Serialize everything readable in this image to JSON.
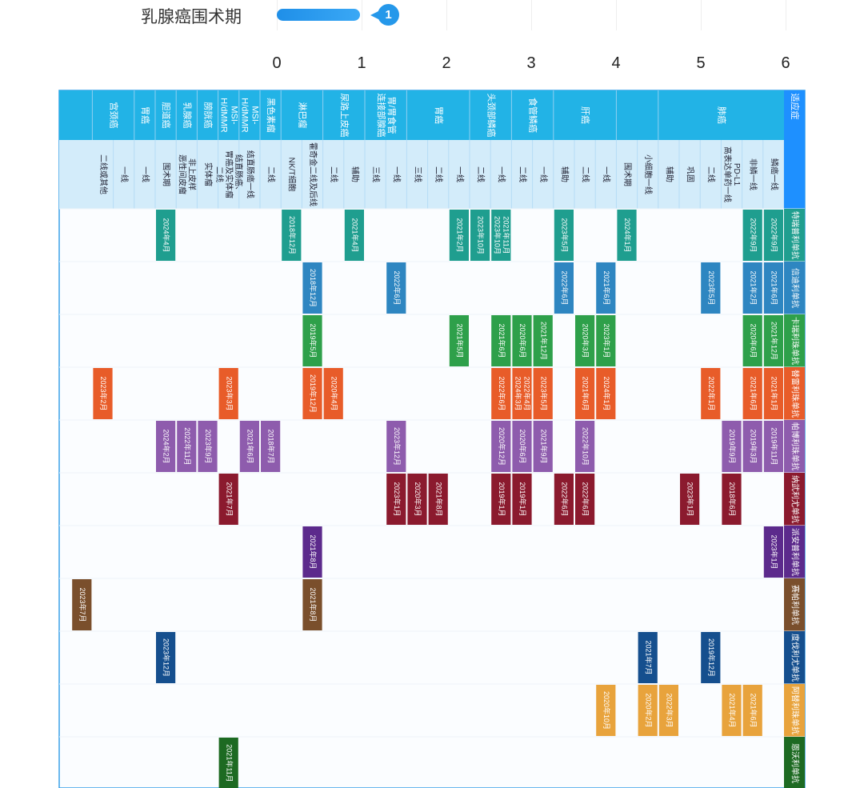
{
  "header": {
    "query": "乳腺癌围术期",
    "rank": "1"
  },
  "colors": {
    "header_top": "#22b3e6",
    "header_sub": "#d3ecfa",
    "accent": "#1e90ff",
    "trastuzumab": "#1f9e8f",
    "durvalumab": "#2e86c1",
    "atezolizumab": "#2ea04a",
    "nivolumab": "#e85c29",
    "pembrolizumab": "#8e5cad",
    "tislelizumab": "#8b1a2e",
    "sintilimab": "#5c2a8c",
    "serplulimab": "#7a4f2c",
    "camrelizumab": "#154f8e",
    "toripalimab": "#e8a33c",
    "envafolimab": "#1d6a22"
  },
  "chart_data": {
    "type": "table",
    "title": "",
    "x_axis_ticks": [
      "0",
      "1",
      "2",
      "3",
      "4",
      "5",
      "6"
    ],
    "cancers": [
      {
        "name": "适应症",
        "subs": []
      },
      {
        "name": "肺癌",
        "subs": [
          "鳞癌一线",
          "非鳞一线",
          "PD-L1\n高表达单药一线",
          "二线",
          "巩固",
          "辅助"
        ]
      },
      {
        "name": "",
        "subs": [
          "小细胞一线",
          "围术期"
        ]
      },
      {
        "name": "肝癌",
        "subs": [
          "一线",
          "二线",
          "辅助"
        ]
      },
      {
        "name": "食管鳞癌",
        "subs": [
          "一线",
          "二线"
        ]
      },
      {
        "name": "头颈部鳞癌",
        "subs": [
          "一线",
          "二线"
        ]
      },
      {
        "name": "胃癌",
        "subs": [
          "一线",
          "二线",
          "三线"
        ]
      },
      {
        "name": "胃/胃食管\n连接部腺癌",
        "subs": [
          "一线",
          "三线"
        ]
      },
      {
        "name": "尿路上皮癌",
        "subs": [
          "辅助",
          "二线"
        ]
      },
      {
        "name": "淋巴瘤",
        "subs": [
          "霍奇金二线及后线",
          "NK/T细胞"
        ]
      },
      {
        "name": "黑色素瘤",
        "subs": [
          "二线"
        ]
      },
      {
        "name": "MSI-\nH/dMMR",
        "subs": [
          "结直肠癌一线"
        ]
      },
      {
        "name": "MSI-\nH/dMMR",
        "subs": [
          "结直肠癌、\n胃癌及实体瘤\n二线"
        ]
      },
      {
        "name": "膀胱癌",
        "subs": [
          "实体瘤"
        ]
      },
      {
        "name": "乳腺癌",
        "subs": [
          "非上皮样\n恶性间皮瘤"
        ]
      },
      {
        "name": "胆道癌",
        "subs": [
          "围术期"
        ]
      },
      {
        "name": "胃癌",
        "subs": [
          "一线"
        ]
      },
      {
        "name": "宫颈癌",
        "subs": [
          "一线",
          "二线或其他"
        ]
      }
    ],
    "drugs": [
      {
        "name": "特瑞普利单抗",
        "color_key": "trastuzumab",
        "cells": [
          {
            "col": 1,
            "label": "2022年9月"
          },
          {
            "col": 2,
            "label": "2022年9月"
          },
          {
            "col": 8,
            "label": "2024年1月"
          },
          {
            "col": 11,
            "label": "2023年5月"
          },
          {
            "col": 14,
            "label": "2021年11月\n2023年10月"
          },
          {
            "col": 15,
            "label": "2023年10月"
          },
          {
            "col": 16,
            "label": "2021年2月"
          },
          {
            "col": 21,
            "label": "2021年4月"
          },
          {
            "col": 24,
            "label": "2018年12月"
          },
          {
            "col": 30,
            "label": "2024年4月"
          }
        ]
      },
      {
        "name": "信迪利单抗",
        "color_key": "durvalumab",
        "cells": [
          {
            "col": 1,
            "label": "2021年6月"
          },
          {
            "col": 2,
            "label": "2021年2月"
          },
          {
            "col": 4,
            "label": "2023年5月"
          },
          {
            "col": 9,
            "label": "2021年6月"
          },
          {
            "col": 11,
            "label": "2022年6月"
          },
          {
            "col": 19,
            "label": "2022年6月"
          },
          {
            "col": 23,
            "label": "2018年12月"
          }
        ]
      },
      {
        "name": "卡瑞利珠单抗",
        "color_key": "atezolizumab",
        "cells": [
          {
            "col": 1,
            "label": "2021年12月"
          },
          {
            "col": 2,
            "label": "2020年6月"
          },
          {
            "col": 9,
            "label": "2023年1月"
          },
          {
            "col": 10,
            "label": "2020年3月"
          },
          {
            "col": 12,
            "label": "2021年12月"
          },
          {
            "col": 13,
            "label": "2020年6月"
          },
          {
            "col": 14,
            "label": "2021年6月"
          },
          {
            "col": 16,
            "label": "2021年5月"
          },
          {
            "col": 23,
            "label": "2019年5月"
          }
        ]
      },
      {
        "name": "替雷利珠单抗",
        "color_key": "nivolumab",
        "cells": [
          {
            "col": 1,
            "label": "2021年1月"
          },
          {
            "col": 2,
            "label": "2021年6月"
          },
          {
            "col": 4,
            "label": "2022年1月"
          },
          {
            "col": 9,
            "label": "2024年1月"
          },
          {
            "col": 10,
            "label": "2021年6月"
          },
          {
            "col": 12,
            "label": "2023年5月"
          },
          {
            "col": 13,
            "label": "2022年4月\n2024年3月"
          },
          {
            "col": 14,
            "label": "2022年6月"
          },
          {
            "col": 22,
            "label": "2020年4月"
          },
          {
            "col": 23,
            "label": "2019年12月"
          },
          {
            "col": 27,
            "label": "2023年3月"
          },
          {
            "col": 33,
            "label": "2023年2月"
          }
        ]
      },
      {
        "name": "帕博利珠单抗",
        "color_key": "pembrolizumab",
        "cells": [
          {
            "col": 1,
            "label": "2019年11月"
          },
          {
            "col": 2,
            "label": "2019年3月"
          },
          {
            "col": 3,
            "label": "2019年9月"
          },
          {
            "col": 10,
            "label": "2022年10月"
          },
          {
            "col": 12,
            "label": "2021年9月"
          },
          {
            "col": 13,
            "label": "2020年6月"
          },
          {
            "col": 14,
            "label": "2020年12月"
          },
          {
            "col": 19,
            "label": "2023年12月"
          },
          {
            "col": 25,
            "label": "2018年7月"
          },
          {
            "col": 26,
            "label": "2021年6月"
          },
          {
            "col": 28,
            "label": "2023年9月"
          },
          {
            "col": 29,
            "label": "2022年11月"
          },
          {
            "col": 30,
            "label": "2024年2月"
          }
        ]
      },
      {
        "name": "纳武利尤单抗",
        "color_key": "tislelizumab",
        "cells": [
          {
            "col": 3,
            "label": "2018年6月"
          },
          {
            "col": 5,
            "label": "2023年1月"
          },
          {
            "col": 10,
            "label": "2022年6月"
          },
          {
            "col": 11,
            "label": "2022年6月"
          },
          {
            "col": 13,
            "label": "2019年1月"
          },
          {
            "col": 14,
            "label": "2019年1月"
          },
          {
            "col": 17,
            "label": "2021年8月"
          },
          {
            "col": 18,
            "label": "2020年3月"
          },
          {
            "col": 19,
            "label": "2023年1月"
          },
          {
            "col": 27,
            "label": "2021年7月"
          }
        ]
      },
      {
        "name": "派安普利单抗",
        "color_key": "sintilimab",
        "cells": [
          {
            "col": 1,
            "label": "2023年1月"
          },
          {
            "col": 23,
            "label": "2021年8月"
          }
        ]
      },
      {
        "name": "赛帕利单抗",
        "color_key": "serplulimab",
        "cells": [
          {
            "col": 23,
            "label": "2021年8月"
          },
          {
            "col": 34,
            "label": "2023年7月"
          }
        ]
      },
      {
        "name": "度伐利尤单抗",
        "color_key": "camrelizumab",
        "cells": [
          {
            "col": 4,
            "label": "2019年12月"
          },
          {
            "col": 7,
            "label": "2021年7月"
          },
          {
            "col": 30,
            "label": "2023年12月"
          }
        ]
      },
      {
        "name": "阿替利珠单抗",
        "color_key": "toripalimab",
        "cells": [
          {
            "col": 2,
            "label": "2021年6月"
          },
          {
            "col": 3,
            "label": "2021年4月"
          },
          {
            "col": 6,
            "label": "2022年3月"
          },
          {
            "col": 7,
            "label": "2020年2月"
          },
          {
            "col": 9,
            "label": "2020年10月"
          }
        ]
      },
      {
        "name": "恩沃利单抗",
        "color_key": "envafolimab",
        "cells": [
          {
            "col": 27,
            "label": "2021年11月"
          }
        ]
      }
    ]
  }
}
